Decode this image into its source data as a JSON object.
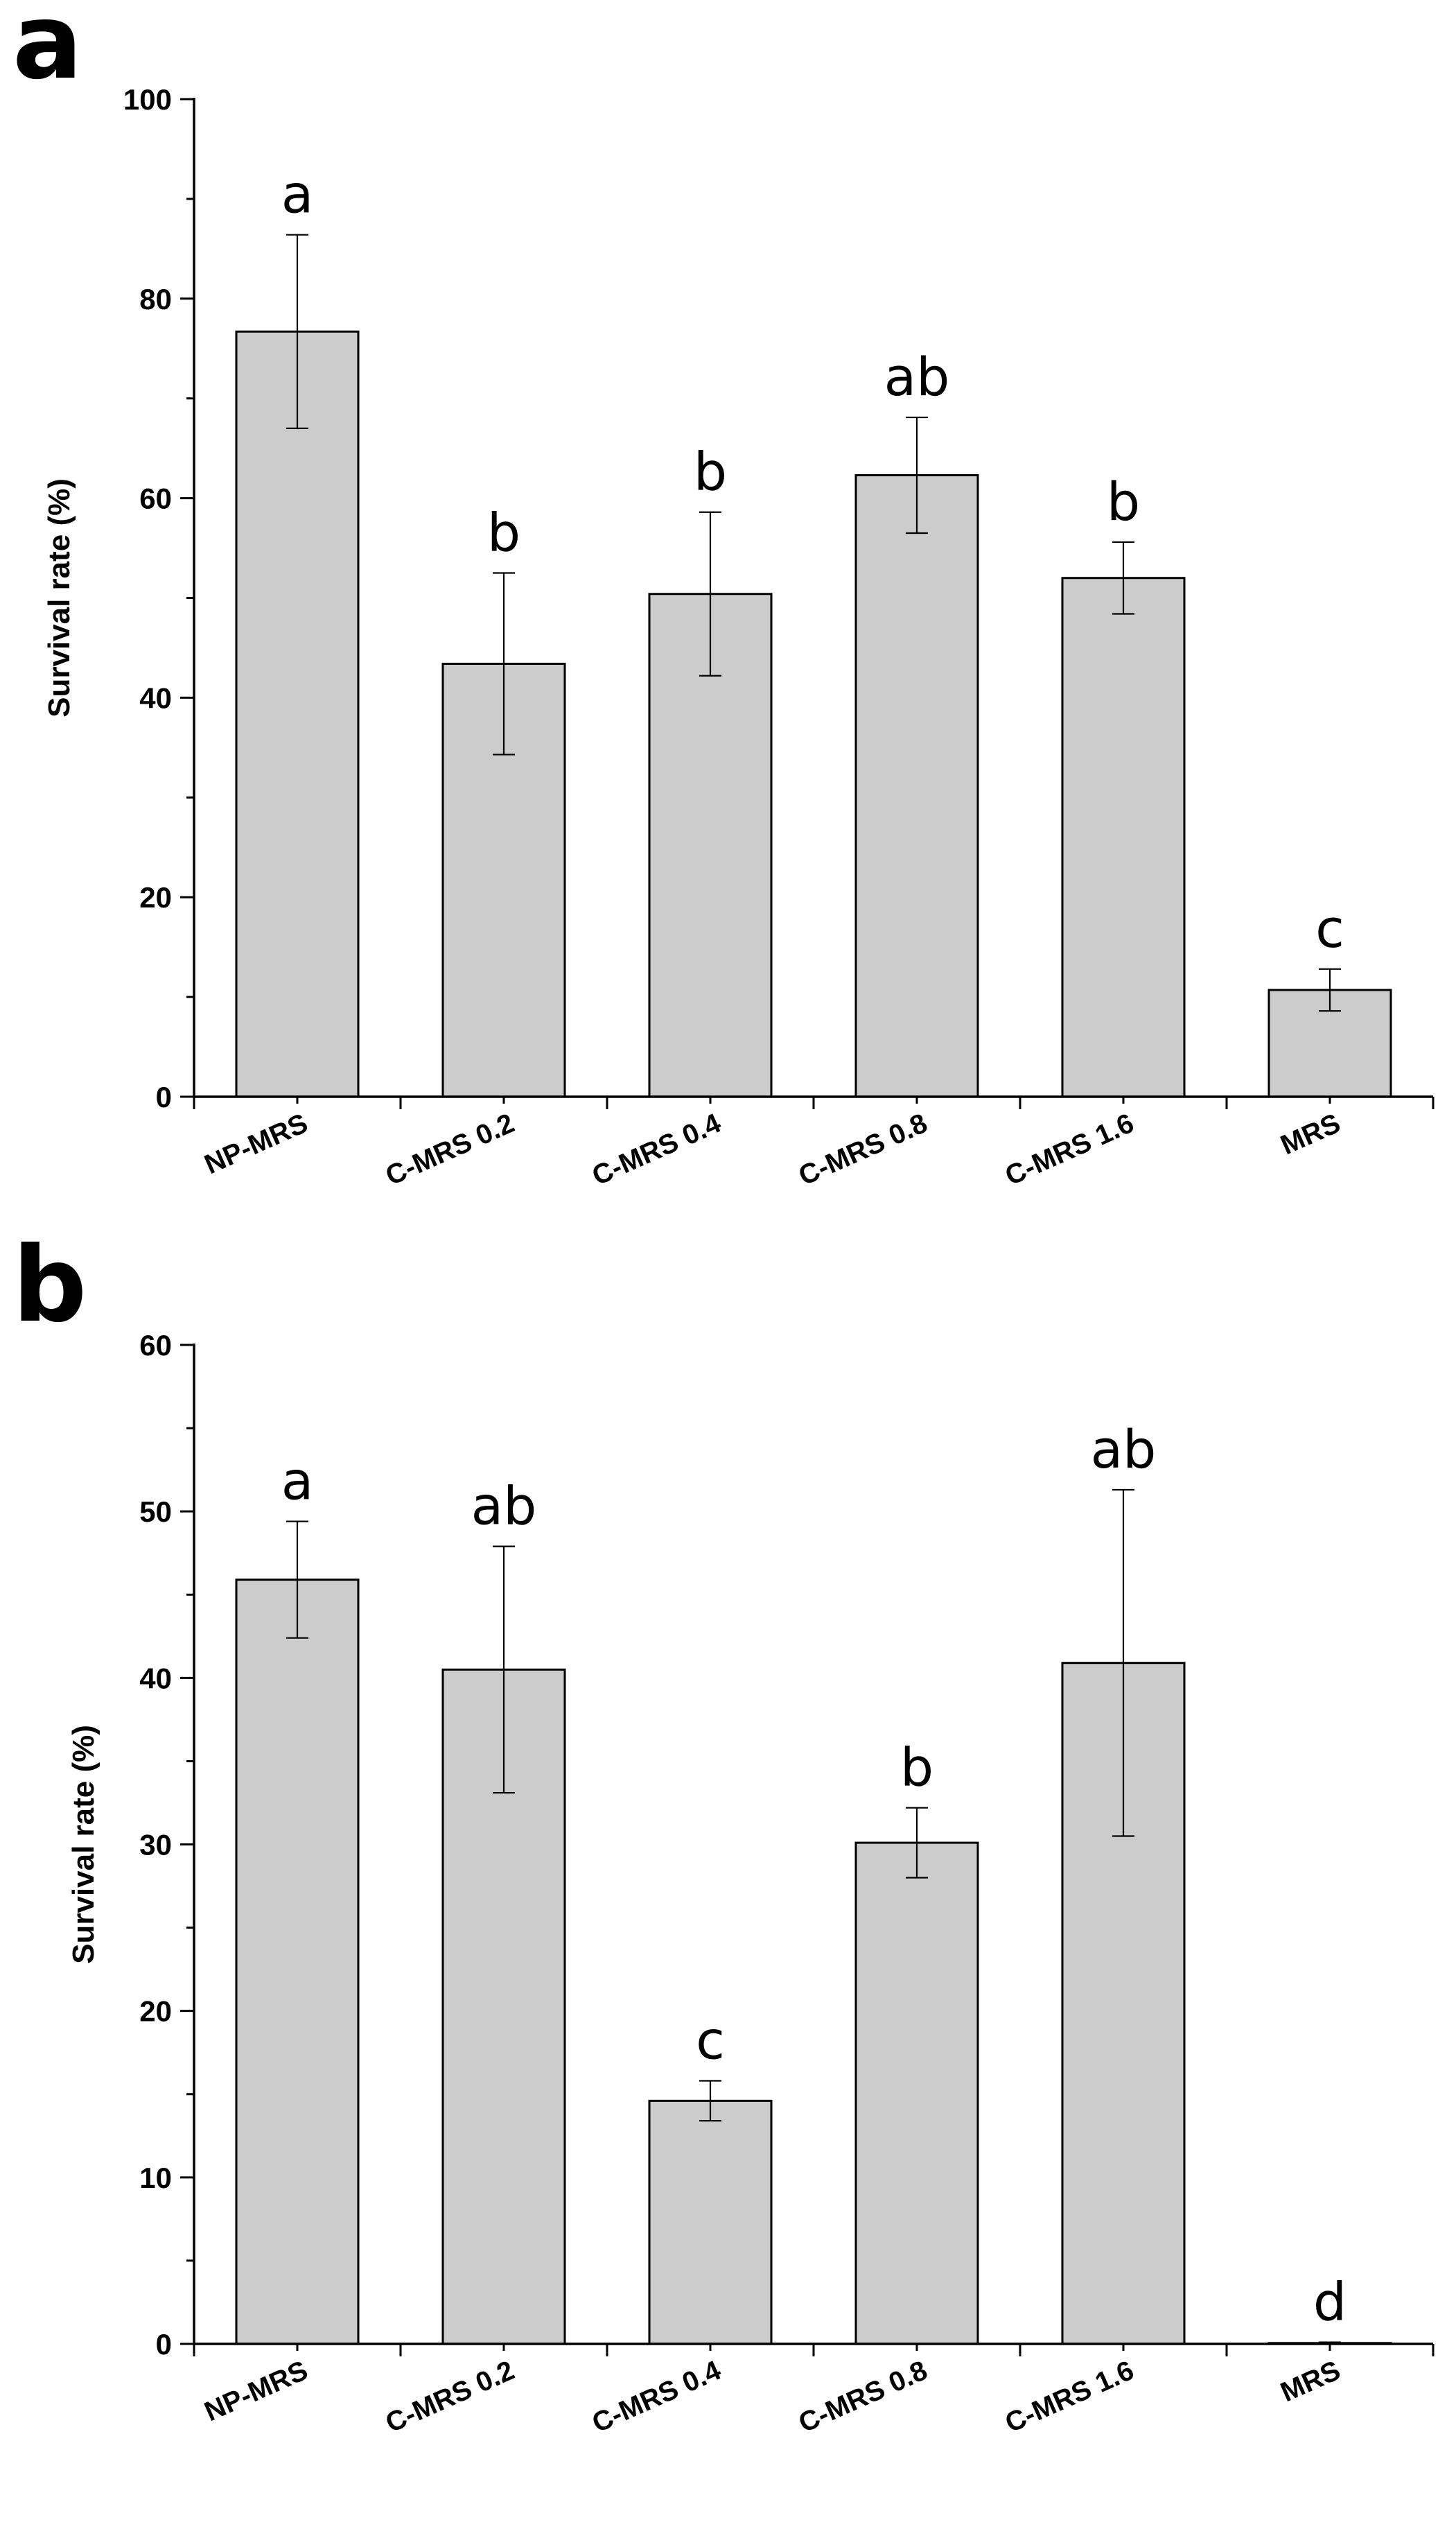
{
  "chart_data": [
    {
      "type": "bar",
      "panel_label": "a",
      "title": "",
      "xlabel": "",
      "ylabel": "Survival rate (%)",
      "ylim": [
        0,
        100
      ],
      "yticks": [
        0,
        20,
        40,
        60,
        80,
        100
      ],
      "categories": [
        "NP-MRS",
        "C-MRS 0.2",
        "C-MRS 0.4",
        "C-MRS 0.8",
        "C-MRS 1.6",
        "MRS"
      ],
      "values": [
        76.7,
        43.4,
        50.4,
        62.3,
        52.0,
        10.7
      ],
      "errors": [
        9.7,
        9.1,
        8.2,
        5.8,
        3.6,
        2.1
      ],
      "significance": [
        "a",
        "b",
        "b",
        "ab",
        "b",
        "c"
      ],
      "bar_color": "#cccccc"
    },
    {
      "type": "bar",
      "panel_label": "b",
      "title": "",
      "xlabel": "",
      "ylabel": "Survival rate (%)",
      "ylim": [
        0,
        60
      ],
      "yticks": [
        0,
        10,
        20,
        30,
        40,
        50,
        60
      ],
      "categories": [
        "NP-MRS",
        "C-MRS 0.2",
        "C-MRS 0.4",
        "C-MRS 0.8",
        "C-MRS 1.6",
        "MRS"
      ],
      "values": [
        45.9,
        40.5,
        14.6,
        30.1,
        40.9,
        0.05
      ],
      "errors": [
        3.5,
        7.4,
        1.2,
        2.1,
        10.4,
        0.05
      ],
      "significance": [
        "a",
        "ab",
        "c",
        "b",
        "ab",
        "d"
      ],
      "bar_color": "#cccccc"
    }
  ]
}
